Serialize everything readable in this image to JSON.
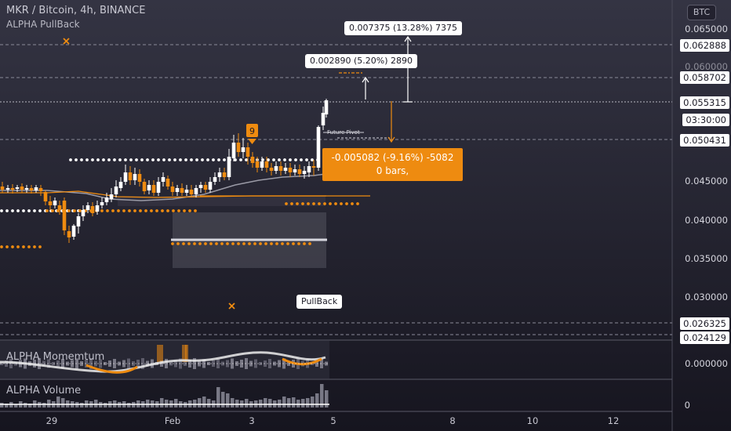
{
  "header": {
    "title": "MKR / Bitcoin, 4h, BINANCE",
    "indicator": "ALPHA PullBack",
    "currency_button": "BTC"
  },
  "annotations": {
    "measure_up_large": "0.007375 (13.28%) 7375",
    "measure_up_small": "0.002890 (5.20%) 2890",
    "measure_down_line1": "-0.005082 (-9.16%) -5082",
    "measure_down_line2": "0 bars,",
    "future_pivot": "Future Pivot",
    "pullback_label": "PullBack",
    "signal_number": "9"
  },
  "price_axis": {
    "ticks": [
      "0.065000",
      "0.060000",
      "0.045000",
      "0.040000",
      "0.035000",
      "0.030000"
    ],
    "markers": [
      "0.062888",
      "0.058702",
      "0.055315",
      "0.050431",
      "0.026325",
      "0.024129"
    ],
    "countdown": "03:30:00"
  },
  "panes": {
    "momentum_title": "ALPHA Momemtum",
    "momentum_value": "0.000000",
    "volume_title": "ALPHA Volume",
    "volume_value": "0"
  },
  "time_axis": {
    "ticks": [
      "29",
      "Feb",
      "3",
      "5",
      "8",
      "10",
      "12"
    ]
  },
  "colors": {
    "background": "#1b1a26",
    "candle_up": "#ffffff",
    "candle_down": "#ee8b10",
    "accent_orange": "#ee8b10",
    "grid_dashed": "#8a8a98"
  }
}
